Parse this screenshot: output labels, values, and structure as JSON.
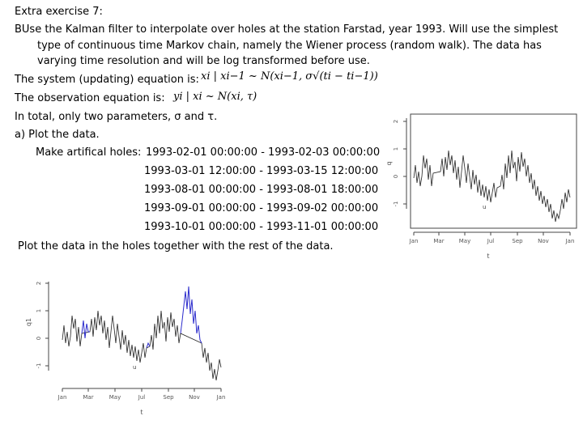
{
  "title": "Extra exercise 7:",
  "para_line1": "BUse the Kalman filter to interpolate over holes at the station Farstad, year 1993. Will use the simplest",
  "para_line2": "type of continuous time Markov chain, namely the Wiener process (random walk). The data has",
  "para_line3": "varying time resolution and will be log transformed before use.",
  "system_label": "The system (updating) equation is:",
  "system_equation": "xi | xi−1 ~ N(xi−1, σ√(ti − ti−1))",
  "observation_label": "The observation equation is:",
  "observation_equation": "yi | xi ~ N(xi, τ)",
  "params_text": "In total, only two parameters, σ and τ.",
  "item_a": "a)  Plot the data.",
  "holes_label": "Make artifical holes:",
  "holes": [
    "1993-02-01 00:00:00 - 1993-02-03 00:00:00",
    "1993-03-01 12:00:00 - 1993-03-15 12:00:00",
    "1993-08-01 00:00:00 - 1993-08-01 18:00:00",
    "1993-09-01 00:00:00 - 1993-09-02 00:00:00",
    "1993-10-01 00:00:00 - 1993-11-01 00:00:00"
  ],
  "conclusion": "Plot the data in the holes together with the rest of the data.",
  "plot1": {
    "xlabel": "t",
    "ylabel": "q",
    "xticks": [
      "Jan",
      "Mar",
      "May",
      "Jul",
      "Sep",
      "Nov",
      "Jan"
    ],
    "yticks": [
      "-1",
      "0",
      "1",
      "2"
    ]
  },
  "plot2": {
    "xlabel": "t",
    "ylabel": "q1",
    "xticks": [
      "Jan",
      "Mar",
      "May",
      "Jul",
      "Sep",
      "Nov",
      "Jan"
    ],
    "yticks": [
      "-1",
      "0",
      "1",
      "2"
    ]
  },
  "colors": {
    "series": "#222222",
    "filled": "#2a2acc"
  }
}
